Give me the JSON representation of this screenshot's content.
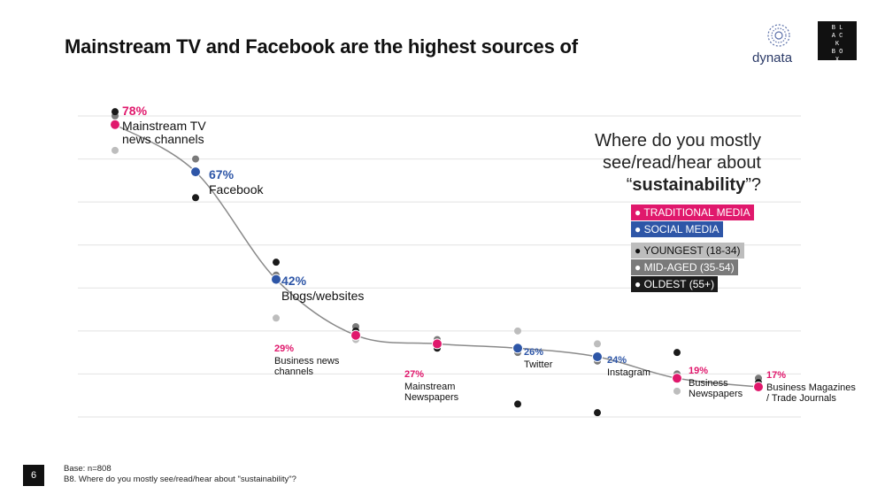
{
  "slide": {
    "title": "Mainstream TV and Facebook are the highest sources of",
    "question_line1": "Where do you mostly",
    "question_line2": "see/read/hear about",
    "question_open": "“",
    "question_bold": "sustainability",
    "question_close": "”?",
    "page_number": "6",
    "base_note": "Base: n=808",
    "question_note": "B8. Where do you mostly see/read/hear about \"sustainability\"?",
    "logo_dynata": "dynata",
    "logo_blackbox": [
      "B L",
      "A C",
      "K",
      "B O",
      "X"
    ]
  },
  "legend": [
    {
      "label": "● TRADITIONAL MEDIA",
      "color": "#e0186c"
    },
    {
      "label": "● SOCIAL MEDIA",
      "color": "#2e56a7"
    },
    {
      "label": "● YOUNGEST (18-34)",
      "color": "#bdbdbd"
    },
    {
      "label": "● MID-AGED (35-54)",
      "color": "#7a7a7a"
    },
    {
      "label": "● OLDEST (55+)",
      "color": "#1a1a1a"
    }
  ],
  "chart_data": {
    "type": "line",
    "title": "",
    "xlabel": "",
    "ylabel": "",
    "ylim": [
      10,
      80
    ],
    "grid": true,
    "categories": [
      "Mainstream TV news channels",
      "Facebook",
      "Blogs/websites",
      "Business news channels",
      "Mainstream Newspapers",
      "Twitter",
      "Instagram",
      "Business Newspapers",
      "Business Magazines / Trade Journals"
    ],
    "series": [
      {
        "name": "TRADITIONAL MEDIA / SOCIAL MEDIA",
        "values": [
          78,
          67,
          42,
          29,
          27,
          26,
          24,
          19,
          17
        ],
        "labels": [
          "78%",
          "67%",
          "42%",
          "29%",
          "27%",
          "26%",
          "24%",
          "19%",
          "17%"
        ],
        "media": [
          "traditional",
          "social",
          "social",
          "traditional",
          "traditional",
          "social",
          "social",
          "traditional",
          "traditional"
        ]
      },
      {
        "name": "YOUNGEST (18-34)",
        "values": [
          72,
          67,
          33,
          28,
          28,
          30,
          27,
          16,
          19
        ]
      },
      {
        "name": "MID-AGED (35-54)",
        "values": [
          80,
          70,
          43,
          31,
          28,
          25,
          23,
          20,
          19
        ]
      },
      {
        "name": "OLDEST (55+)",
        "values": [
          81,
          61,
          46,
          30,
          26,
          13,
          11,
          25,
          18
        ]
      }
    ],
    "media_colors": {
      "traditional": "#e0186c",
      "social": "#2e56a7"
    },
    "series_colors": [
      "#888888",
      "#bdbdbd",
      "#7a7a7a",
      "#1a1a1a"
    ]
  }
}
